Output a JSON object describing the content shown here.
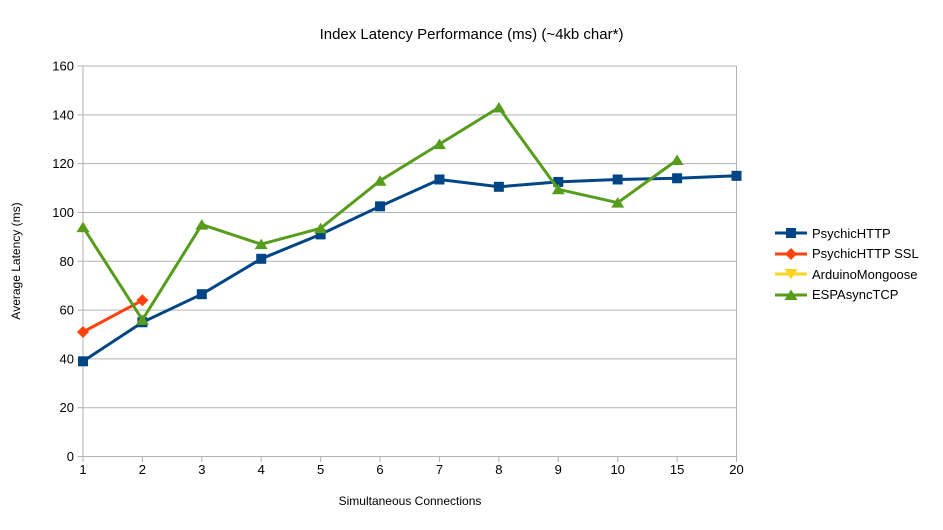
{
  "title": "Index Latency Performance (ms) (~4kb char*)",
  "chart_data": {
    "type": "line",
    "title": "Index Latency Performance (ms) (~4kb char*)",
    "xlabel": "Simultaneous Connections",
    "ylabel": "Average Latency (ms)",
    "categories": [
      "1",
      "2",
      "3",
      "4",
      "5",
      "6",
      "7",
      "8",
      "9",
      "10",
      "15",
      "20"
    ],
    "ylim": [
      0,
      160
    ],
    "ytick_step": 20,
    "grid": "horizontal",
    "legend_position": "right",
    "series": [
      {
        "name": "PsychicHTTP",
        "color": "#004586",
        "marker": "square",
        "values": [
          39,
          55,
          66.5,
          81,
          91,
          102.5,
          113.5,
          110.5,
          112.5,
          113.5,
          114,
          115
        ]
      },
      {
        "name": "PsychicHTTP SSL",
        "color": "#ff420e",
        "marker": "diamond",
        "values": [
          51,
          64,
          null,
          null,
          null,
          null,
          null,
          null,
          null,
          null,
          null,
          null
        ]
      },
      {
        "name": "ArduinoMongoose",
        "color": "#ffd320",
        "marker": "triangle-down",
        "values": [
          null,
          null,
          null,
          null,
          null,
          null,
          null,
          null,
          null,
          null,
          null,
          null
        ]
      },
      {
        "name": "ESPAsyncTCP",
        "color": "#579d1c",
        "marker": "triangle-up",
        "values": [
          94,
          56,
          95,
          87,
          93.5,
          113,
          128,
          143,
          109.5,
          104,
          121.5,
          null
        ]
      }
    ]
  },
  "colors": {
    "grid": "#b3b3b3",
    "axis": "#b3b3b3",
    "text": "#000000",
    "background": "#ffffff"
  }
}
